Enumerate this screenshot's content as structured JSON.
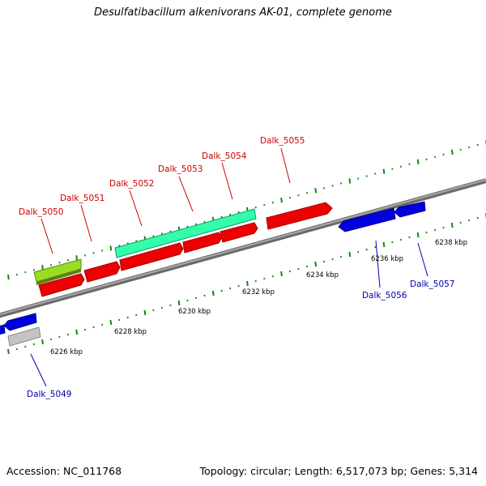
{
  "title": "Desulfatibacillum alkenivorans AK-01, complete genome",
  "footer": {
    "accession": "Accession: NC_011768",
    "summary": "Topology: circular; Length: 6,517,073 bp; Genes: 5,314"
  },
  "scale_labels": [
    "6226 kbp",
    "6228 kbp",
    "6230 kbp",
    "6232 kbp",
    "6234 kbp",
    "6236 kbp",
    "6238 kbp"
  ],
  "gene_labels": {
    "top": [
      "Dalk_5050",
      "Dalk_5051",
      "Dalk_5052",
      "Dalk_5053",
      "Dalk_5054",
      "Dalk_5055"
    ],
    "bottom": [
      "Dalk_5049",
      "Dalk_5056",
      "Dalk_5057"
    ]
  },
  "colors": {
    "red_gene": "#ee0000",
    "blue_gene": "#0000dd",
    "cyan_gene": "#33ffaa",
    "lime_gene": "#99dd22",
    "grey_gene": "#bbbbbb",
    "backbone": "#888888",
    "tick": "#118811",
    "top_label": "#cc0000",
    "bottom_label": "#0000aa"
  }
}
